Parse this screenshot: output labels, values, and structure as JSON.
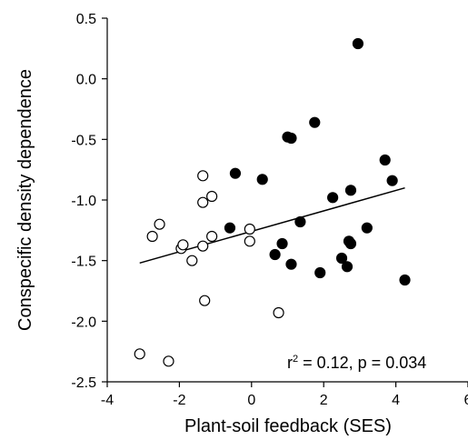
{
  "chart_data": {
    "type": "scatter",
    "xlabel": "Plant-soil feedback (SES)",
    "ylabel": "Conspecific density dependence",
    "xlim": [
      -4,
      6
    ],
    "ylim": [
      -2.5,
      0.5
    ],
    "x_ticks": [
      "-4",
      "-2",
      "0",
      "2",
      "4",
      "6"
    ],
    "y_ticks": [
      "-2.5",
      "-2.0",
      "-1.5",
      "-1.0",
      "-0.5",
      "0.0",
      "0.5"
    ],
    "grid": false,
    "series": [
      {
        "marker": "open-circle",
        "color": "#000000",
        "points": [
          [
            -3.1,
            -2.27
          ],
          [
            -2.3,
            -2.33
          ],
          [
            -2.75,
            -1.3
          ],
          [
            -2.55,
            -1.2
          ],
          [
            -1.95,
            -1.4
          ],
          [
            -1.9,
            -1.37
          ],
          [
            -1.65,
            -1.5
          ],
          [
            -1.35,
            -0.8
          ],
          [
            -1.35,
            -1.02
          ],
          [
            -1.35,
            -1.38
          ],
          [
            -1.1,
            -0.97
          ],
          [
            -1.1,
            -1.3
          ],
          [
            -1.3,
            -1.83
          ],
          [
            -0.05,
            -1.24
          ],
          [
            -0.05,
            -1.34
          ],
          [
            0.75,
            -1.93
          ]
        ]
      },
      {
        "marker": "filled-circle",
        "color": "#000000",
        "points": [
          [
            2.95,
            0.29
          ],
          [
            -0.45,
            -0.78
          ],
          [
            -0.6,
            -1.23
          ],
          [
            0.3,
            -0.83
          ],
          [
            1.0,
            -0.48
          ],
          [
            1.1,
            -0.49
          ],
          [
            1.75,
            -0.36
          ],
          [
            0.65,
            -1.45
          ],
          [
            0.85,
            -1.36
          ],
          [
            1.1,
            -1.53
          ],
          [
            1.35,
            -1.18
          ],
          [
            1.9,
            -1.6
          ],
          [
            2.25,
            -0.98
          ],
          [
            2.5,
            -1.48
          ],
          [
            2.65,
            -1.55
          ],
          [
            2.7,
            -1.34
          ],
          [
            2.75,
            -1.36
          ],
          [
            2.75,
            -0.92
          ],
          [
            3.2,
            -1.23
          ],
          [
            3.7,
            -0.67
          ],
          [
            3.9,
            -0.84
          ],
          [
            4.25,
            -1.66
          ]
        ]
      }
    ],
    "fit_line": {
      "x": [
        -3.1,
        4.25
      ],
      "y": [
        -1.52,
        -0.9
      ]
    },
    "annotation": {
      "r_symbol": "r",
      "superscript": "2",
      "rest": " = 0.12, p = 0.034"
    }
  }
}
